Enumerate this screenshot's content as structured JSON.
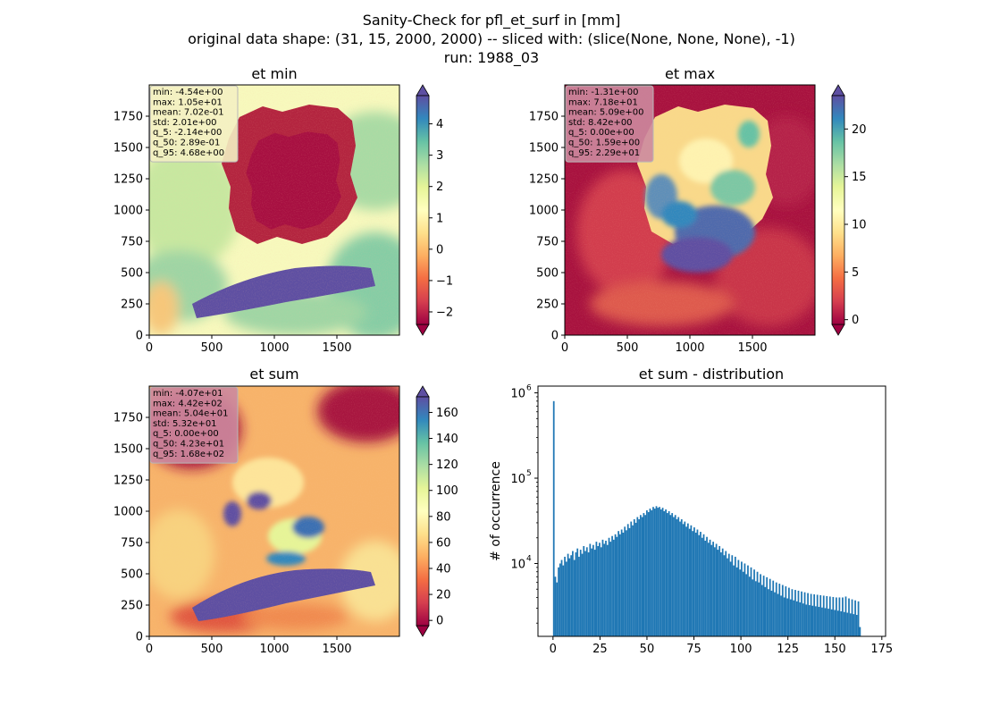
{
  "suptitle": {
    "line1": "Sanity-Check for pfl_et_surf in [mm]",
    "line2": "original data shape: (31, 15, 2000, 2000) -- sliced with: (slice(None, None, None), -1)",
    "line3": "run: 1988_03"
  },
  "colors": {
    "hist_bar": "#1f77b4",
    "spectral": [
      "#9e0142",
      "#d53e4f",
      "#f46d43",
      "#fdae61",
      "#fee08b",
      "#ffffbf",
      "#e6f598",
      "#abdda4",
      "#66c2a5",
      "#3288bd",
      "#5e4fa2"
    ]
  },
  "chart_data": [
    {
      "type": "heatmap",
      "title": "et min",
      "xlim": [
        0,
        2000
      ],
      "ylim": [
        0,
        2000
      ],
      "xticks": [
        "0",
        "500",
        "1000",
        "1500"
      ],
      "yticks": [
        "0",
        "250",
        "500",
        "750",
        "1000",
        "1250",
        "1500",
        "1750"
      ],
      "colorbar": {
        "min": -2.4,
        "max": 4.9,
        "ticks": [
          "−2",
          "−1",
          "0",
          "1",
          "2",
          "3",
          "4"
        ],
        "tick_values": [
          -2,
          -1,
          0,
          1,
          2,
          3,
          4
        ],
        "extend": "both"
      },
      "stats_box_tint": "#f3f0c2",
      "stats": [
        "min: -4.54e+00",
        "max: 1.05e+01",
        "mean: 7.02e-01",
        "std: 2.01e+00",
        "q_5: -2.14e+00",
        "q_50: 2.89e-01",
        "q_95: 4.68e+00"
      ]
    },
    {
      "type": "heatmap",
      "title": "et max",
      "xlim": [
        0,
        2000
      ],
      "ylim": [
        0,
        2000
      ],
      "xticks": [
        "0",
        "500",
        "1000",
        "1500"
      ],
      "yticks": [
        "0",
        "250",
        "500",
        "750",
        "1000",
        "1250",
        "1500",
        "1750"
      ],
      "colorbar": {
        "min": -0.5,
        "max": 23.5,
        "ticks": [
          "0",
          "5",
          "10",
          "15",
          "20"
        ],
        "tick_values": [
          0,
          5,
          10,
          15,
          20
        ],
        "extend": "both"
      },
      "stats_box_tint": "#cc8a9f",
      "stats": [
        "min: -1.31e+00",
        "max: 7.18e+01",
        "mean: 5.09e+00",
        "std: 8.42e+00",
        "q_5: 0.00e+00",
        "q_50: 1.59e+00",
        "q_95: 2.29e+01"
      ]
    },
    {
      "type": "heatmap",
      "title": "et sum",
      "xlim": [
        0,
        2000
      ],
      "ylim": [
        0,
        2000
      ],
      "xticks": [
        "0",
        "500",
        "1000",
        "1500"
      ],
      "yticks": [
        "0",
        "250",
        "500",
        "750",
        "1000",
        "1250",
        "1500",
        "1750"
      ],
      "colorbar": {
        "min": -4,
        "max": 172,
        "ticks": [
          "0",
          "20",
          "40",
          "60",
          "80",
          "100",
          "120",
          "140",
          "160"
        ],
        "tick_values": [
          0,
          20,
          40,
          60,
          80,
          100,
          120,
          140,
          160
        ],
        "extend": "both"
      },
      "stats_box_tint": "#cc8a9f",
      "stats": [
        "min: -4.07e+01",
        "max: 4.42e+02",
        "mean: 5.04e+01",
        "std: 5.32e+01",
        "q_5: 0.00e+00",
        "q_50: 4.23e+01",
        "q_95: 1.68e+02"
      ]
    },
    {
      "type": "bar",
      "title": "et sum - distribution",
      "ylabel": "# of occurrence",
      "yscale": "log",
      "xlim": [
        -8,
        177
      ],
      "ylim": [
        1400,
        1200000
      ],
      "xticks": [
        0,
        25,
        50,
        75,
        100,
        125,
        150,
        175
      ],
      "yticks": [
        {
          "value": 10000,
          "label": "10",
          "exp": "4"
        },
        {
          "value": 100000,
          "label": "10",
          "exp": "5"
        },
        {
          "value": 1000000,
          "label": "10",
          "exp": "6"
        }
      ],
      "bin_width": 0.84,
      "bin_start": 0,
      "values": [
        800000,
        7000,
        6000,
        9000,
        10000,
        11000,
        9500,
        12000,
        10500,
        13000,
        11500,
        12500,
        14000,
        11000,
        13500,
        15000,
        12000,
        14500,
        13000,
        16000,
        14000,
        15500,
        13500,
        17000,
        15000,
        16500,
        14500,
        18000,
        16000,
        17500,
        15500,
        19000,
        17000,
        18500,
        16500,
        20000,
        18000,
        21000,
        19000,
        22000,
        20500,
        24000,
        22000,
        25000,
        23000,
        27000,
        24500,
        29000,
        26000,
        31000,
        28000,
        33000,
        30000,
        35000,
        33000,
        37000,
        35000,
        39000,
        37000,
        42000,
        40000,
        44000,
        42000,
        46000,
        44000,
        47000,
        45000,
        46000,
        43000,
        45000,
        41000,
        43000,
        39000,
        41000,
        37000,
        39000,
        35000,
        37000,
        33000,
        35000,
        31000,
        33000,
        29000,
        31000,
        27000,
        29500,
        25500,
        28000,
        24000,
        26500,
        23000,
        25000,
        21500,
        23500,
        20000,
        22000,
        18500,
        20500,
        17500,
        19000,
        16500,
        18000,
        15500,
        17000,
        14500,
        16000,
        13500,
        15000,
        12500,
        14000,
        11500,
        13000,
        10500,
        12500,
        9500,
        12000,
        9000,
        11000,
        8500,
        10500,
        8000,
        10000,
        7500,
        9500,
        7000,
        9000,
        6500,
        8500,
        6200,
        8000,
        6000,
        7500,
        5600,
        7200,
        5300,
        6900,
        5000,
        6600,
        4800,
        6300,
        4600,
        6000,
        4400,
        5800,
        4200,
        5600,
        4000,
        5400,
        3900,
        5200,
        3800,
        5000,
        3700,
        4900,
        3600,
        4800,
        3500,
        4700,
        3400,
        4600,
        3300,
        4500,
        3250,
        4400,
        3200,
        4350,
        3150,
        4300,
        3100,
        4250,
        3050,
        4200,
        3000,
        4150,
        2950,
        4100,
        2900,
        4050,
        2850,
        4000,
        2800,
        4000,
        2750,
        4000,
        2700,
        4100,
        2650,
        3900,
        2600,
        3800,
        2550,
        3700,
        2500,
        3600,
        1800
      ]
    }
  ]
}
